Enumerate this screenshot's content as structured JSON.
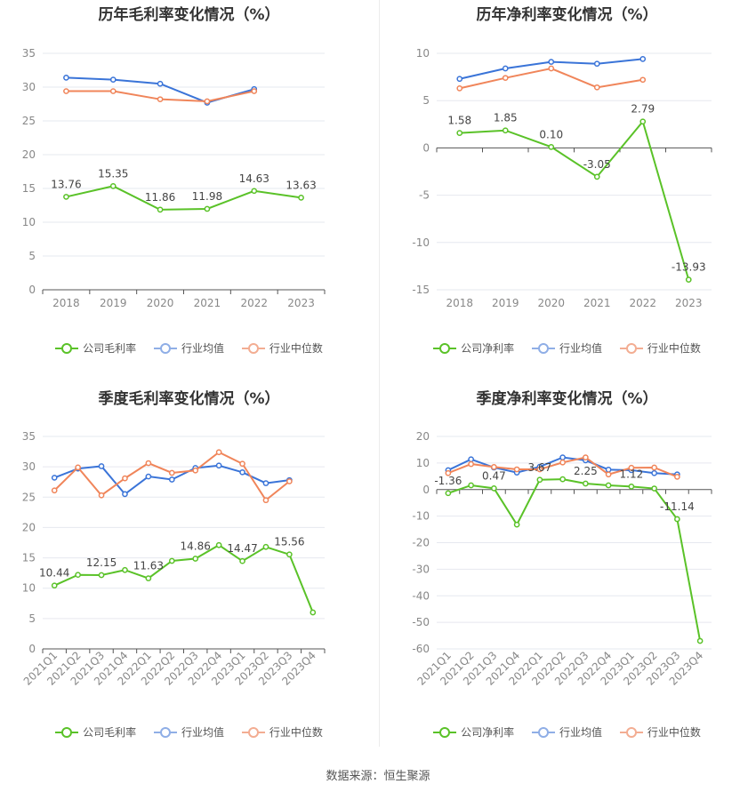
{
  "colors": {
    "company": "#5ac228",
    "avg": "#3a74d8",
    "median": "#f0855a",
    "grid": "#e6e8ef",
    "axis": "#555555",
    "tick": "#888888"
  },
  "legend": {
    "gross": "公司毛利率",
    "net": "公司净利率",
    "avg": "行业均值",
    "median": "行业中位数"
  },
  "source": "数据来源：恒生聚源",
  "chart_data": [
    {
      "type": "line",
      "title": "历年毛利率变化情况（%）",
      "categories": [
        "2018",
        "2019",
        "2020",
        "2021",
        "2022",
        "2023"
      ],
      "ylim": [
        0,
        35
      ],
      "yticks": [
        0,
        5,
        10,
        15,
        20,
        25,
        30,
        35
      ],
      "grid": true,
      "legend_position": "bottom",
      "series": [
        {
          "name": "公司毛利率",
          "color": "#5ac228",
          "values": [
            13.76,
            15.35,
            11.86,
            11.98,
            14.63,
            13.63
          ],
          "data_labels": [
            "13.76",
            "15.35",
            "11.86",
            "11.98",
            "14.63",
            "13.63"
          ]
        },
        {
          "name": "行业均值",
          "color": "#3a74d8",
          "values": [
            31.4,
            31.1,
            30.5,
            27.7,
            29.7,
            null
          ]
        },
        {
          "name": "行业中位数",
          "color": "#f0855a",
          "values": [
            29.4,
            29.4,
            28.2,
            27.9,
            29.4,
            null
          ]
        }
      ]
    },
    {
      "type": "line",
      "title": "历年净利率变化情况（%）",
      "categories": [
        "2018",
        "2019",
        "2020",
        "2021",
        "2022",
        "2023"
      ],
      "ylim": [
        -15,
        10
      ],
      "yticks": [
        -15,
        -10,
        -5,
        0,
        5,
        10
      ],
      "grid": true,
      "legend_position": "bottom",
      "series": [
        {
          "name": "公司净利率",
          "color": "#5ac228",
          "values": [
            1.58,
            1.85,
            0.1,
            -3.05,
            2.79,
            -13.93
          ],
          "data_labels": [
            "1.58",
            "1.85",
            "0.10",
            "-3.05",
            "2.79",
            "-13.93"
          ]
        },
        {
          "name": "行业均值",
          "color": "#3a74d8",
          "values": [
            7.3,
            8.4,
            9.1,
            8.9,
            9.4,
            null
          ]
        },
        {
          "name": "行业中位数",
          "color": "#f0855a",
          "values": [
            6.3,
            7.4,
            8.4,
            6.4,
            7.2,
            null
          ]
        }
      ]
    },
    {
      "type": "line",
      "title": "季度毛利率变化情况（%）",
      "categories": [
        "2021Q1",
        "2021Q2",
        "2021Q3",
        "2021Q4",
        "2022Q1",
        "2022Q2",
        "2022Q3",
        "2022Q4",
        "2023Q1",
        "2023Q2",
        "2023Q3",
        "2023Q4"
      ],
      "ylim": [
        0,
        35
      ],
      "yticks": [
        0,
        5,
        10,
        15,
        20,
        25,
        30,
        35
      ],
      "grid": true,
      "legend_position": "bottom",
      "series": [
        {
          "name": "公司毛利率",
          "color": "#5ac228",
          "values": [
            10.44,
            12.2,
            12.15,
            13.0,
            11.63,
            14.5,
            14.86,
            17.1,
            14.47,
            16.8,
            15.56,
            6.0
          ],
          "data_labels": [
            "10.44",
            "",
            "12.15",
            "",
            "11.63",
            "",
            "14.86",
            "",
            "14.47",
            "",
            "15.56",
            ""
          ]
        },
        {
          "name": "行业均值",
          "color": "#3a74d8",
          "values": [
            28.2,
            29.7,
            30.1,
            25.5,
            28.4,
            27.9,
            29.8,
            30.2,
            29.1,
            27.3,
            27.8,
            null
          ]
        },
        {
          "name": "行业中位数",
          "color": "#f0855a",
          "values": [
            26.1,
            29.9,
            25.3,
            28.1,
            30.6,
            29.0,
            29.4,
            32.4,
            30.5,
            24.5,
            27.6,
            null
          ]
        }
      ]
    },
    {
      "type": "line",
      "title": "季度净利率变化情况（%）",
      "categories": [
        "2021Q1",
        "2021Q2",
        "2021Q3",
        "2021Q4",
        "2022Q1",
        "2022Q2",
        "2022Q3",
        "2022Q4",
        "2023Q1",
        "2023Q2",
        "2023Q3",
        "2023Q4"
      ],
      "ylim": [
        -60,
        20
      ],
      "yticks": [
        -60,
        -50,
        -40,
        -30,
        -20,
        -10,
        0,
        10,
        20
      ],
      "grid": true,
      "legend_position": "bottom",
      "series": [
        {
          "name": "公司净利率",
          "color": "#5ac228",
          "values": [
            -1.36,
            1.6,
            0.47,
            -13.2,
            3.67,
            3.9,
            2.25,
            1.6,
            1.12,
            0.4,
            -11.14,
            -57.0
          ],
          "data_labels": [
            "-1.36",
            "",
            "0.47",
            "",
            "3.67",
            "",
            "2.25",
            "",
            "1.12",
            "",
            "-11.14",
            ""
          ]
        },
        {
          "name": "行业均值",
          "color": "#3a74d8",
          "values": [
            7.3,
            11.4,
            8.3,
            6.4,
            8.6,
            12.1,
            11.0,
            7.5,
            7.3,
            6.2,
            5.7,
            null
          ]
        },
        {
          "name": "行业中位数",
          "color": "#f0855a",
          "values": [
            6.2,
            9.6,
            8.5,
            7.6,
            7.6,
            10.2,
            12.1,
            5.7,
            8.2,
            8.3,
            4.8,
            null
          ]
        }
      ]
    }
  ]
}
